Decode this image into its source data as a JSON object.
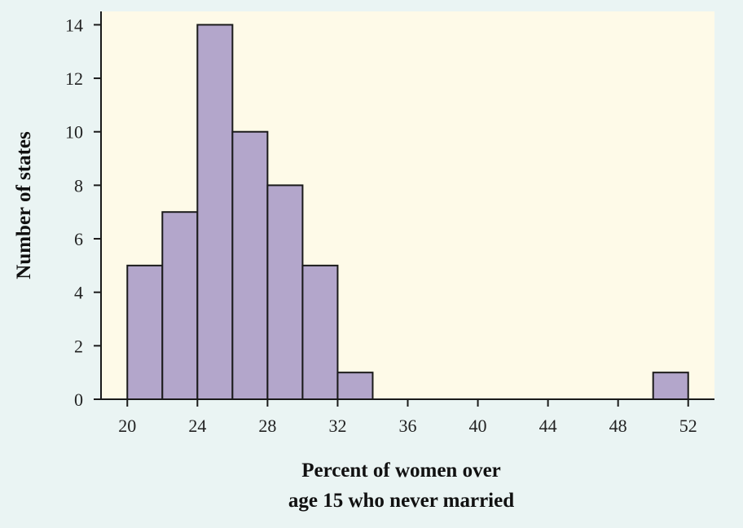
{
  "chart_data": {
    "type": "bar",
    "subtype": "histogram",
    "xlabel_lines": [
      "Percent of women over",
      "age 15 who never married"
    ],
    "ylabel": "Number of states",
    "x_ticks": [
      20,
      24,
      28,
      32,
      36,
      40,
      44,
      48,
      52
    ],
    "y_ticks": [
      0,
      2,
      4,
      6,
      8,
      10,
      12,
      14
    ],
    "xlim": [
      18.5,
      53.5
    ],
    "ylim": [
      0,
      14.5
    ],
    "bins": [
      {
        "start": 20,
        "end": 22,
        "count": 5
      },
      {
        "start": 22,
        "end": 24,
        "count": 7
      },
      {
        "start": 24,
        "end": 26,
        "count": 14
      },
      {
        "start": 26,
        "end": 28,
        "count": 10
      },
      {
        "start": 28,
        "end": 30,
        "count": 8
      },
      {
        "start": 30,
        "end": 32,
        "count": 5
      },
      {
        "start": 32,
        "end": 34,
        "count": 1
      },
      {
        "start": 50,
        "end": 52,
        "count": 1
      }
    ],
    "colors": {
      "page_background": "#eaf4f3",
      "plot_background": "#fefae8",
      "bar_fill": "#b3a6cb",
      "bar_stroke": "#1a1a1a",
      "axis": "#1a1a1a"
    },
    "grid": false,
    "legend": "none"
  }
}
